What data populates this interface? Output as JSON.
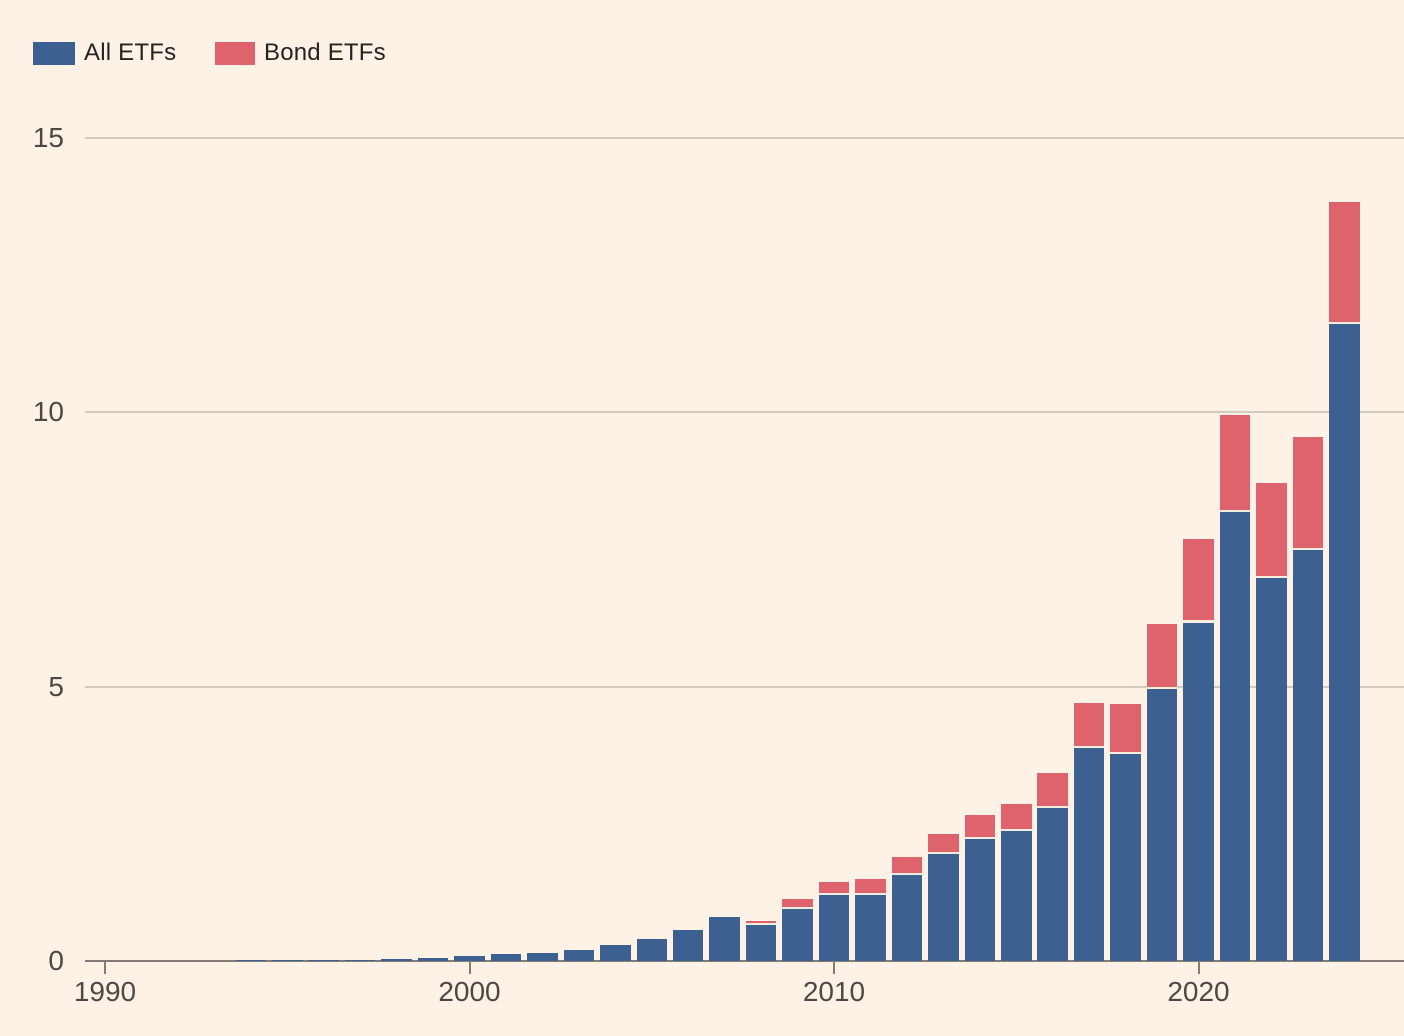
{
  "legend": [
    {
      "label": "All ETFs",
      "color": "#3C608F"
    },
    {
      "label": "Bond ETFs",
      "color": "#DE636D"
    }
  ],
  "colors": {
    "background": "#FEF2E6",
    "all_etfs_bar": "#3C608F",
    "bond_etfs_bar": "#DE636D",
    "gridline": "#D3CABE",
    "axis_line": "#847C72",
    "tick_label": "#4E4842",
    "legend_text": "#262220",
    "segment_separator": "#F9EDDF"
  },
  "y_axis": {
    "tick_labels": [
      "0",
      "5",
      "10",
      "15"
    ],
    "tick_values": [
      0,
      5,
      10,
      15
    ]
  },
  "x_axis": {
    "tick_labels": [
      "1990",
      "2000",
      "2010",
      "2020"
    ],
    "tick_values": [
      1990,
      2000,
      2010,
      2020
    ]
  },
  "chart_data": {
    "type": "bar",
    "stacked": true,
    "title": "",
    "xlabel": "",
    "ylabel": "",
    "ylim": [
      0,
      15
    ],
    "xlim": [
      1990,
      2025
    ],
    "grid": true,
    "legend_position": "top-left",
    "categories": [
      1993,
      1994,
      1995,
      1996,
      1997,
      1998,
      1999,
      2000,
      2001,
      2002,
      2003,
      2004,
      2005,
      2006,
      2007,
      2008,
      2009,
      2010,
      2011,
      2012,
      2013,
      2014,
      2015,
      2016,
      2017,
      2018,
      2019,
      2020,
      2021,
      2022,
      2023,
      2024
    ],
    "series": [
      {
        "name": "All ETFs",
        "color": "#3C608F",
        "values": [
          0.005,
          0.01,
          0.01,
          0.02,
          0.02,
          0.03,
          0.06,
          0.1,
          0.13,
          0.15,
          0.2,
          0.29,
          0.4,
          0.57,
          0.8,
          0.65,
          0.94,
          1.2,
          1.2,
          1.57,
          1.95,
          2.23,
          2.37,
          2.79,
          3.89,
          3.78,
          4.96,
          6.17,
          8.19,
          6.99,
          7.5,
          11.61
        ]
      },
      {
        "name": "Bond ETFs",
        "color": "#DE636D",
        "values": [
          0,
          0,
          0,
          0,
          0,
          0,
          0,
          0,
          0,
          0,
          0,
          0,
          0,
          0,
          0,
          0.08,
          0.19,
          0.24,
          0.29,
          0.33,
          0.37,
          0.43,
          0.49,
          0.64,
          0.82,
          0.91,
          1.19,
          1.53,
          1.76,
          1.73,
          2.06,
          2.22
        ]
      }
    ],
    "stacked_totals": [
      0.005,
      0.01,
      0.01,
      0.02,
      0.02,
      0.03,
      0.06,
      0.1,
      0.13,
      0.15,
      0.2,
      0.29,
      0.4,
      0.57,
      0.8,
      0.73,
      1.13,
      1.44,
      1.49,
      1.9,
      2.32,
      2.66,
      2.86,
      3.43,
      4.71,
      4.69,
      6.15,
      7.7,
      9.95,
      8.72,
      9.56,
      13.83
    ]
  }
}
